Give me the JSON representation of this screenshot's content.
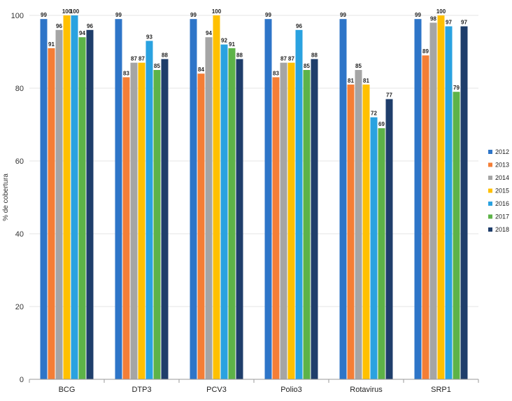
{
  "chart_data": {
    "type": "bar",
    "categories": [
      "BCG",
      "DTP3",
      "PCV3",
      "Polio3",
      "Rotavirus",
      "SRP1"
    ],
    "series": [
      {
        "name": "2012",
        "color": "#2E75C8",
        "values": [
          99,
          99,
          99,
          99,
          99,
          99
        ]
      },
      {
        "name": "2013",
        "color": "#F47E36",
        "values": [
          91,
          83,
          84,
          83,
          81,
          89
        ]
      },
      {
        "name": "2014",
        "color": "#A5A5A5",
        "values": [
          96,
          87,
          94,
          87,
          85,
          98
        ]
      },
      {
        "name": "2015",
        "color": "#FFC000",
        "values": [
          100,
          87,
          100,
          87,
          81,
          100
        ]
      },
      {
        "name": "2016",
        "color": "#2AA2E0",
        "values": [
          100,
          93,
          92,
          96,
          72,
          97
        ]
      },
      {
        "name": "2017",
        "color": "#5DB348",
        "values": [
          94,
          85,
          91,
          85,
          69,
          79
        ]
      },
      {
        "name": "2018",
        "color": "#1F3E6B",
        "values": [
          96,
          88,
          88,
          88,
          77,
          97
        ]
      }
    ],
    "ylabel": "% de cobertura",
    "xlabel": "",
    "title": "",
    "ylim": [
      0,
      100
    ],
    "yticks": [
      0,
      20,
      40,
      60,
      80,
      100
    ],
    "grid": true,
    "legend_position": "right"
  }
}
